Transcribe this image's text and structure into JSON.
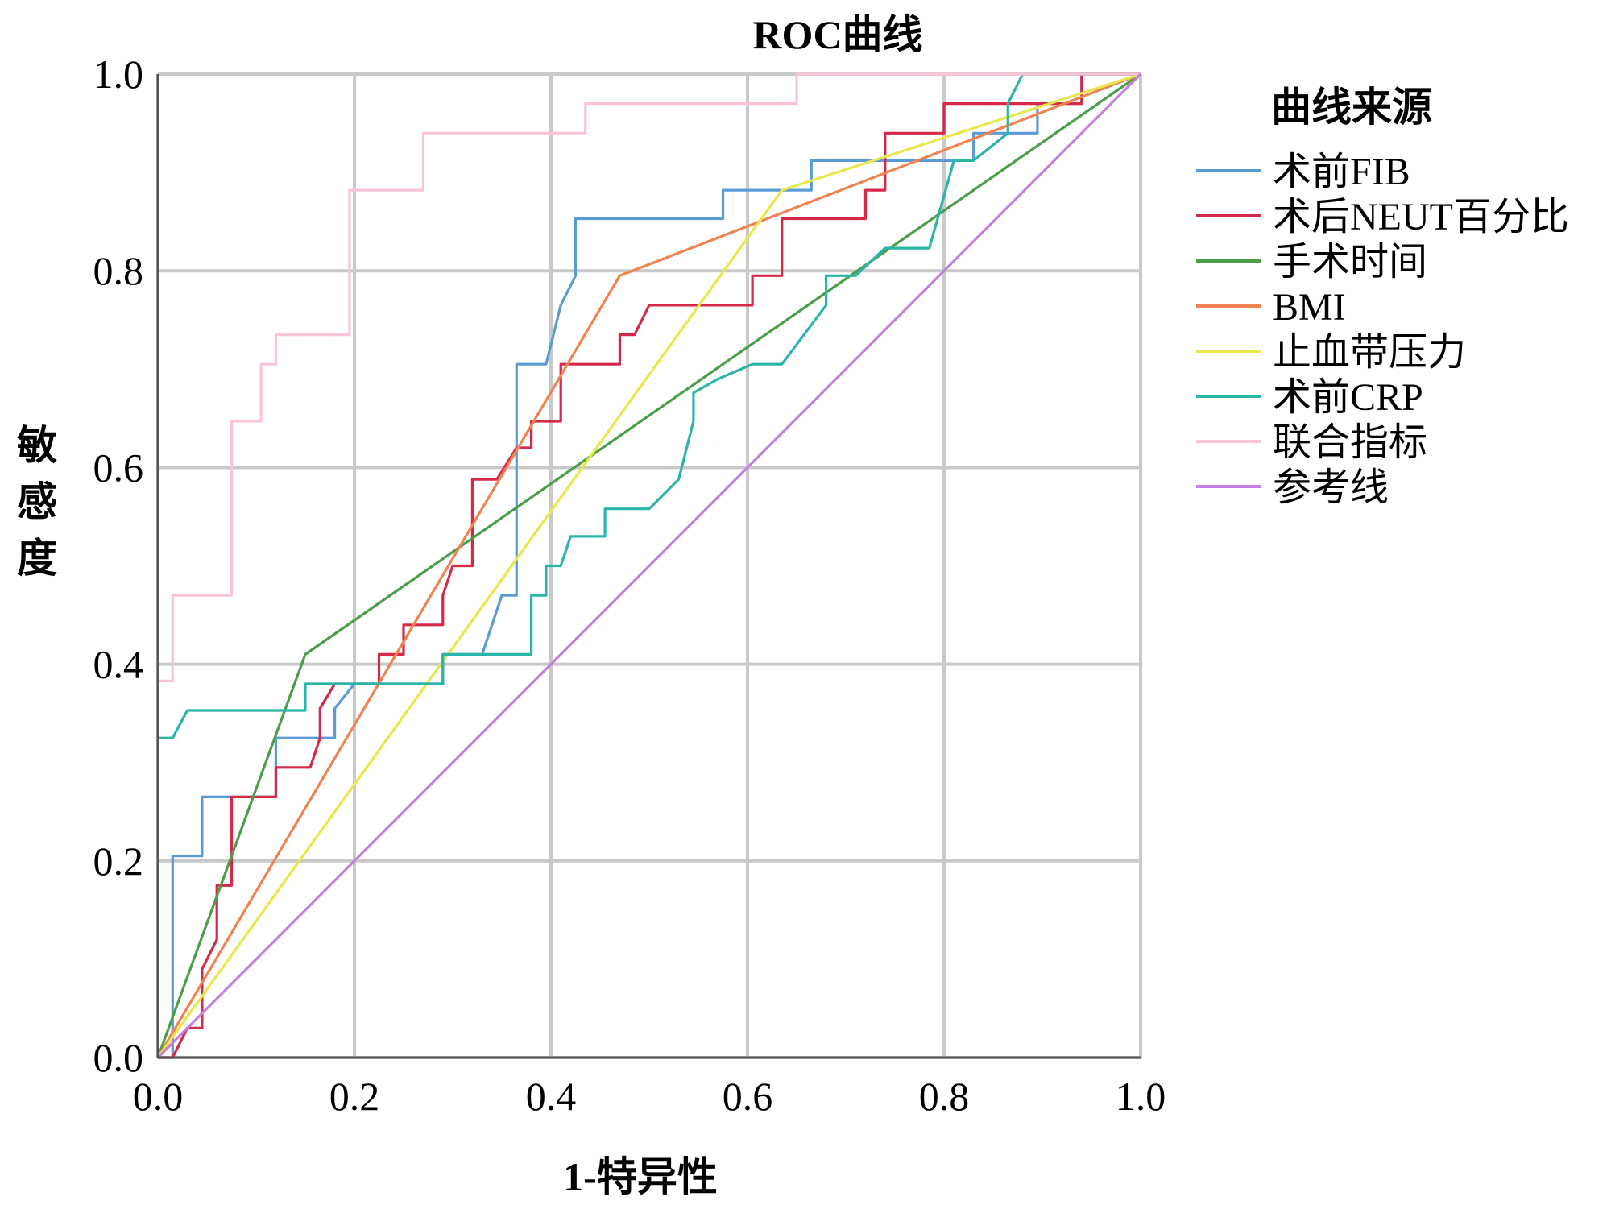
{
  "chart_data": {
    "type": "line",
    "title": "ROC曲线",
    "xlabel": "1-特异性",
    "ylabel": "敏感度",
    "xlim": [
      0.0,
      1.0
    ],
    "ylim": [
      0.0,
      1.0
    ],
    "xticks": [
      "0.0",
      "0.2",
      "0.4",
      "0.6",
      "0.8",
      "1.0"
    ],
    "yticks": [
      "0.0",
      "0.2",
      "0.4",
      "0.6",
      "0.8",
      "1.0"
    ],
    "grid": true,
    "legend_title": "曲线来源",
    "legend_position": "right",
    "series": [
      {
        "name": "术前FIB",
        "color": "#5b9bd5",
        "points": [
          [
            0,
            0
          ],
          [
            0.015,
            0
          ],
          [
            0.015,
            0.205
          ],
          [
            0.045,
            0.205
          ],
          [
            0.045,
            0.265
          ],
          [
            0.12,
            0.265
          ],
          [
            0.12,
            0.325
          ],
          [
            0.18,
            0.325
          ],
          [
            0.18,
            0.355
          ],
          [
            0.2,
            0.38
          ],
          [
            0.29,
            0.38
          ],
          [
            0.29,
            0.41
          ],
          [
            0.33,
            0.41
          ],
          [
            0.35,
            0.47
          ],
          [
            0.365,
            0.47
          ],
          [
            0.365,
            0.705
          ],
          [
            0.395,
            0.705
          ],
          [
            0.41,
            0.765
          ],
          [
            0.425,
            0.795
          ],
          [
            0.425,
            0.853
          ],
          [
            0.575,
            0.853
          ],
          [
            0.575,
            0.882
          ],
          [
            0.665,
            0.882
          ],
          [
            0.665,
            0.912
          ],
          [
            0.83,
            0.912
          ],
          [
            0.83,
            0.94
          ],
          [
            0.895,
            0.94
          ],
          [
            0.895,
            0.97
          ],
          [
            0.94,
            0.97
          ],
          [
            0.94,
            1
          ],
          [
            1,
            1
          ]
        ]
      },
      {
        "name": "术后NEUT百分比",
        "color": "#d6294a",
        "points": [
          [
            0,
            0
          ],
          [
            0.015,
            0
          ],
          [
            0.03,
            0.03
          ],
          [
            0.045,
            0.03
          ],
          [
            0.045,
            0.09
          ],
          [
            0.06,
            0.12
          ],
          [
            0.06,
            0.175
          ],
          [
            0.075,
            0.175
          ],
          [
            0.075,
            0.265
          ],
          [
            0.12,
            0.265
          ],
          [
            0.12,
            0.295
          ],
          [
            0.155,
            0.295
          ],
          [
            0.165,
            0.325
          ],
          [
            0.165,
            0.355
          ],
          [
            0.18,
            0.38
          ],
          [
            0.225,
            0.38
          ],
          [
            0.225,
            0.41
          ],
          [
            0.25,
            0.41
          ],
          [
            0.25,
            0.44
          ],
          [
            0.29,
            0.44
          ],
          [
            0.29,
            0.47
          ],
          [
            0.3,
            0.5
          ],
          [
            0.32,
            0.5
          ],
          [
            0.32,
            0.588
          ],
          [
            0.345,
            0.588
          ],
          [
            0.365,
            0.62
          ],
          [
            0.38,
            0.62
          ],
          [
            0.38,
            0.647
          ],
          [
            0.41,
            0.647
          ],
          [
            0.41,
            0.705
          ],
          [
            0.47,
            0.705
          ],
          [
            0.47,
            0.735
          ],
          [
            0.485,
            0.735
          ],
          [
            0.5,
            0.765
          ],
          [
            0.57,
            0.765
          ],
          [
            0.605,
            0.765
          ],
          [
            0.605,
            0.795
          ],
          [
            0.635,
            0.795
          ],
          [
            0.635,
            0.853
          ],
          [
            0.72,
            0.853
          ],
          [
            0.72,
            0.882
          ],
          [
            0.74,
            0.882
          ],
          [
            0.74,
            0.94
          ],
          [
            0.8,
            0.94
          ],
          [
            0.8,
            0.97
          ],
          [
            0.94,
            0.97
          ],
          [
            0.94,
            1
          ],
          [
            1,
            1
          ]
        ]
      },
      {
        "name": "手术时间",
        "color": "#4a9e4a",
        "points": [
          [
            0,
            0
          ],
          [
            0.15,
            0.41
          ],
          [
            1,
            1
          ]
        ]
      },
      {
        "name": "BMI",
        "color": "#f0834f",
        "points": [
          [
            0,
            0
          ],
          [
            0.47,
            0.795
          ],
          [
            1,
            1
          ]
        ]
      },
      {
        "name": "止血带压力",
        "color": "#e8e84a",
        "points": [
          [
            0,
            0
          ],
          [
            0.635,
            0.882
          ],
          [
            1,
            1
          ]
        ]
      },
      {
        "name": "术前CRP",
        "color": "#2bb5a8",
        "points": [
          [
            0,
            0.325
          ],
          [
            0.015,
            0.325
          ],
          [
            0.03,
            0.353
          ],
          [
            0.15,
            0.353
          ],
          [
            0.15,
            0.38
          ],
          [
            0.29,
            0.38
          ],
          [
            0.29,
            0.41
          ],
          [
            0.38,
            0.41
          ],
          [
            0.38,
            0.47
          ],
          [
            0.395,
            0.47
          ],
          [
            0.395,
            0.5
          ],
          [
            0.41,
            0.5
          ],
          [
            0.42,
            0.53
          ],
          [
            0.455,
            0.53
          ],
          [
            0.455,
            0.558
          ],
          [
            0.5,
            0.558
          ],
          [
            0.53,
            0.588
          ],
          [
            0.545,
            0.647
          ],
          [
            0.545,
            0.676
          ],
          [
            0.57,
            0.69
          ],
          [
            0.605,
            0.705
          ],
          [
            0.635,
            0.705
          ],
          [
            0.68,
            0.765
          ],
          [
            0.68,
            0.795
          ],
          [
            0.71,
            0.795
          ],
          [
            0.74,
            0.823
          ],
          [
            0.785,
            0.823
          ],
          [
            0.81,
            0.912
          ],
          [
            0.83,
            0.912
          ],
          [
            0.865,
            0.94
          ],
          [
            0.865,
            0.97
          ],
          [
            0.88,
            1
          ],
          [
            1,
            1
          ]
        ]
      },
      {
        "name": "联合指标",
        "color": "#f9c4d6",
        "points": [
          [
            0,
            0.32
          ],
          [
            0,
            0.383
          ],
          [
            0.015,
            0.383
          ],
          [
            0.015,
            0.47
          ],
          [
            0.075,
            0.47
          ],
          [
            0.075,
            0.647
          ],
          [
            0.105,
            0.647
          ],
          [
            0.105,
            0.705
          ],
          [
            0.12,
            0.705
          ],
          [
            0.12,
            0.735
          ],
          [
            0.195,
            0.735
          ],
          [
            0.195,
            0.882
          ],
          [
            0.27,
            0.882
          ],
          [
            0.27,
            0.94
          ],
          [
            0.435,
            0.94
          ],
          [
            0.435,
            0.97
          ],
          [
            0.65,
            0.97
          ],
          [
            0.65,
            1
          ],
          [
            1,
            1
          ]
        ]
      },
      {
        "name": "参考线",
        "color": "#c57fe0",
        "points": [
          [
            0,
            0
          ],
          [
            1,
            1
          ]
        ]
      }
    ]
  }
}
